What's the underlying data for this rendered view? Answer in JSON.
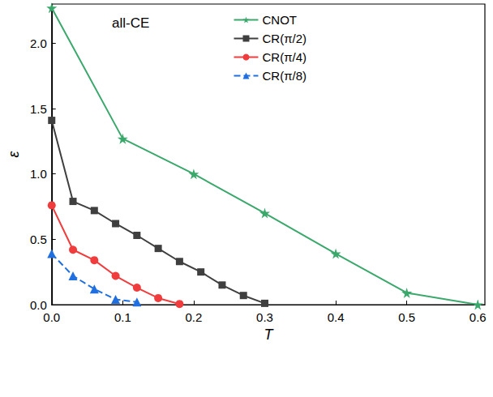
{
  "chart_data": {
    "type": "line",
    "annotation": "all-CE",
    "x_label": "T",
    "y_label": "ε",
    "xlim": [
      0,
      0.61
    ],
    "ylim": [
      0,
      2.3
    ],
    "xticks": [
      {
        "value": 0,
        "label": "0.0"
      },
      0.1,
      0.2,
      0.3,
      0.4,
      0.5,
      0.6
    ],
    "yticks": [
      {
        "value": 0,
        "label": "0.0"
      },
      0.5,
      {
        "value": 1,
        "label": "1.0"
      },
      1.5,
      {
        "value": 2,
        "label": "2.0"
      }
    ],
    "grid": false,
    "legend": "top-right",
    "series": [
      {
        "name": "CNOT",
        "color": "#3aa86b",
        "marker": "star",
        "line_style": "solid",
        "x": [
          0,
          0.1,
          0.2,
          0.3,
          0.4,
          0.5,
          0.6
        ],
        "values": [
          2.27,
          1.27,
          1.0,
          0.7,
          0.39,
          0.09,
          0.0
        ]
      },
      {
        "name": "CR(π/2)",
        "color": "#3f3f3f",
        "marker": "square",
        "line_style": "solid",
        "x": [
          0,
          0.03,
          0.06,
          0.09,
          0.12,
          0.15,
          0.18,
          0.21,
          0.24,
          0.27,
          0.3
        ],
        "values": [
          1.41,
          0.79,
          0.72,
          0.62,
          0.53,
          0.43,
          0.33,
          0.25,
          0.15,
          0.07,
          0.01
        ]
      },
      {
        "name": "CR(π/4)",
        "color": "#f03c3c",
        "marker": "circle",
        "line_style": "solid",
        "x": [
          0,
          0.03,
          0.06,
          0.09,
          0.12,
          0.15,
          0.18
        ],
        "values": [
          0.76,
          0.42,
          0.34,
          0.22,
          0.13,
          0.05,
          0.005
        ]
      },
      {
        "name": "CR(π/8)",
        "color": "#1f6fe0",
        "marker": "triangle",
        "line_style": "dashed",
        "x": [
          0,
          0.03,
          0.06,
          0.09,
          0.12
        ],
        "values": [
          0.39,
          0.22,
          0.12,
          0.04,
          0.02
        ]
      }
    ]
  }
}
